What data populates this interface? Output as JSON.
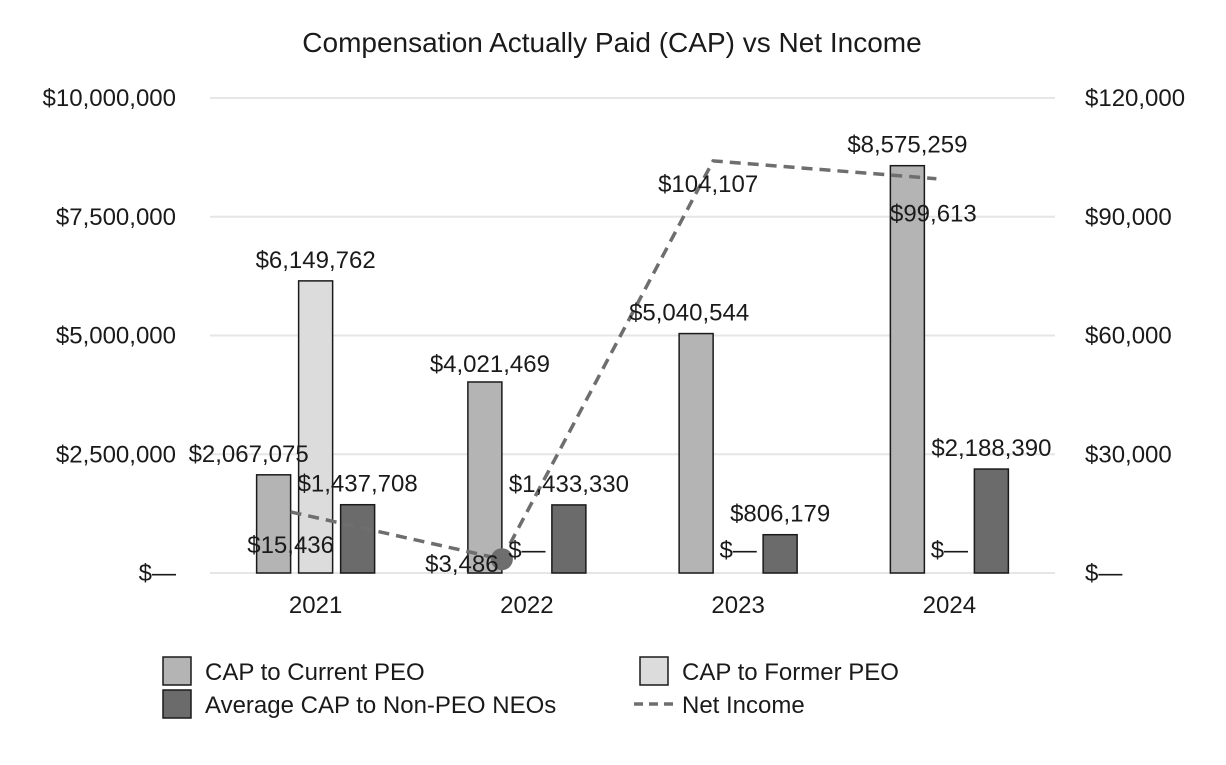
{
  "chart_data": {
    "type": "bar",
    "title": "Compensation Actually Paid (CAP) vs Net Income",
    "categories": [
      "2021",
      "2022",
      "2023",
      "2024"
    ],
    "left_axis": {
      "ylim": [
        0,
        10000000
      ],
      "ticks": [
        0,
        2500000,
        5000000,
        7500000,
        10000000
      ],
      "tick_labels": [
        "$—",
        "$2,500,000",
        "$5,000,000",
        "$7,500,000",
        "$10,000,000"
      ]
    },
    "right_axis": {
      "ylim": [
        0,
        120000
      ],
      "ticks": [
        0,
        30000,
        60000,
        90000,
        120000
      ],
      "tick_labels": [
        "$—",
        "$30,000",
        "$60,000",
        "$90,000",
        "$120,000"
      ]
    },
    "grid": true,
    "legend_position": "bottom",
    "series": [
      {
        "name": "CAP to Current PEO",
        "kind": "bar",
        "axis": "left",
        "color": "#b4b4b4",
        "values": [
          2067075,
          4021469,
          5040544,
          8575259
        ],
        "labels": [
          "$2,067,075",
          "$4,021,469",
          "$5,040,544",
          "$8,575,259"
        ]
      },
      {
        "name": "CAP to Former PEO",
        "kind": "bar",
        "axis": "left",
        "color": "#dcdcdc",
        "values": [
          6149762,
          0,
          0,
          0
        ],
        "labels": [
          "$6,149,762",
          "$—",
          "$—",
          "$—"
        ]
      },
      {
        "name": "Average CAP to Non-PEO NEOs",
        "kind": "bar",
        "axis": "left",
        "color": "#6b6b6b",
        "values": [
          1437708,
          1433330,
          806179,
          2188390
        ],
        "labels": [
          "$1,437,708",
          "$1,433,330",
          "$806,179",
          "$2,188,390"
        ]
      },
      {
        "name": "Net Income",
        "kind": "line",
        "axis": "right",
        "color": "#6e6e6e",
        "style": "dashed",
        "values": [
          15436,
          3486,
          104107,
          99613
        ],
        "labels": [
          "$15,436",
          "$3,486",
          "$104,107",
          "$99,613"
        ]
      }
    ]
  }
}
